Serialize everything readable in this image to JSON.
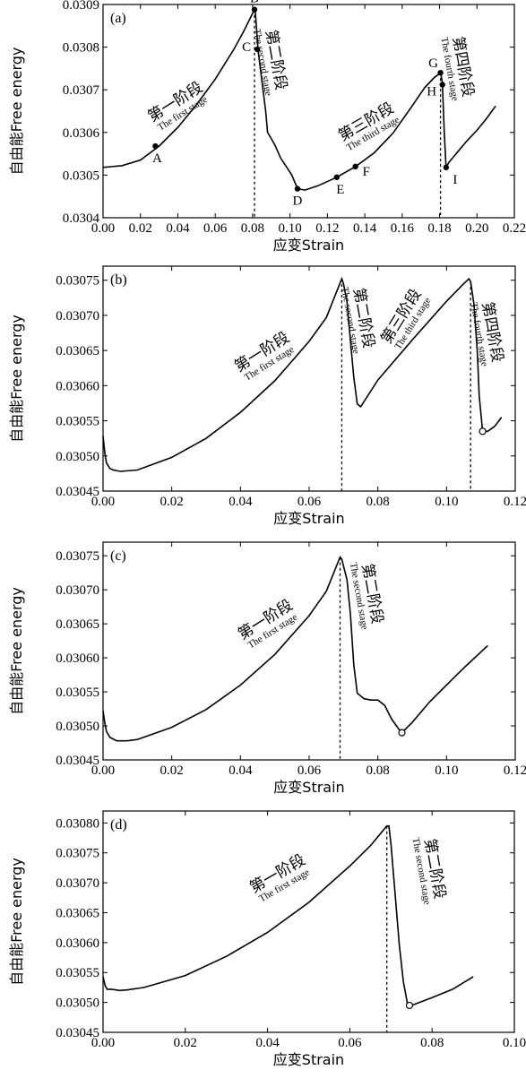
{
  "chart_data": [
    {
      "type": "line",
      "panel_label": "(a)",
      "xlabel": "应变Strain",
      "ylabel": "自由能Free energy",
      "xlim": [
        0,
        0.22
      ],
      "ylim": [
        0.0304,
        0.0309
      ],
      "xticks": [
        "0.00",
        "0.02",
        "0.04",
        "0.06",
        "0.08",
        "0.10",
        "0.12",
        "0.14",
        "0.16",
        "0.18",
        "0.20",
        "0.22"
      ],
      "yticks": [
        "0.0304",
        "0.0305",
        "0.0306",
        "0.0307",
        "0.0308",
        "0.0309"
      ],
      "series": [
        {
          "x": [
            0.0,
            0.01,
            0.02,
            0.03,
            0.04,
            0.05,
            0.06,
            0.07,
            0.075,
            0.081,
            0.0815,
            0.083,
            0.085,
            0.087,
            0.088,
            0.09,
            0.092,
            0.095,
            0.098,
            0.101,
            0.104,
            0.108,
            0.115,
            0.125,
            0.135,
            0.145,
            0.155,
            0.165,
            0.172,
            0.177,
            0.1805,
            0.181,
            0.1815,
            0.1825,
            0.1835,
            0.185,
            0.19,
            0.195,
            0.2,
            0.205,
            0.21
          ],
          "y": [
            0.030518,
            0.030522,
            0.030535,
            0.030568,
            0.030612,
            0.030665,
            0.030725,
            0.030795,
            0.030835,
            0.030888,
            0.03088,
            0.03079,
            0.03072,
            0.03065,
            0.0306,
            0.030585,
            0.03057,
            0.03054,
            0.03052,
            0.0305,
            0.030468,
            0.030465,
            0.030475,
            0.030495,
            0.03052,
            0.030552,
            0.030598,
            0.03066,
            0.030705,
            0.030728,
            0.03074,
            0.03073,
            0.030715,
            0.0306,
            0.030518,
            0.03053,
            0.030556,
            0.030582,
            0.030605,
            0.030632,
            0.030662
          ]
        }
      ],
      "points": [
        {
          "label": "A",
          "x": 0.028,
          "y": 0.030568
        },
        {
          "label": "B",
          "x": 0.081,
          "y": 0.030888
        },
        {
          "label": "C",
          "x": 0.0825,
          "y": 0.030795
        },
        {
          "label": "D",
          "x": 0.104,
          "y": 0.030468
        },
        {
          "label": "E",
          "x": 0.125,
          "y": 0.030495
        },
        {
          "label": "F",
          "x": 0.135,
          "y": 0.03052
        },
        {
          "label": "G",
          "x": 0.1805,
          "y": 0.03074
        },
        {
          "label": "H",
          "x": 0.1815,
          "y": 0.030712
        },
        {
          "label": "I",
          "x": 0.1835,
          "y": 0.030518
        }
      ],
      "dashed_x": [
        0.081,
        0.1805
      ],
      "stage_labels": [
        {
          "cn": "第一阶段",
          "en": "The first stage",
          "x": 0.04,
          "y": 0.030662,
          "angle": -32
        },
        {
          "cn": "第二阶段",
          "en": "The second stage",
          "x": 0.09,
          "y": 0.030768,
          "angle": 80
        },
        {
          "cn": "第三阶段",
          "en": "The third stage",
          "x": 0.142,
          "y": 0.030615,
          "angle": -30
        },
        {
          "cn": "第四阶段",
          "en": "The fourth stage",
          "x": 0.19,
          "y": 0.030752,
          "angle": 80
        }
      ]
    },
    {
      "type": "line",
      "panel_label": "(b)",
      "xlabel": "应变Strain",
      "ylabel": "自由能Free energy",
      "xlim": [
        0,
        0.12
      ],
      "ylim": [
        0.03045,
        0.03077
      ],
      "xticks": [
        "0.00",
        "0.02",
        "0.04",
        "0.06",
        "0.08",
        "0.10",
        "0.12"
      ],
      "yticks": [
        "0.03045",
        "0.03050",
        "0.03055",
        "0.03060",
        "0.03065",
        "0.03070",
        "0.03075"
      ],
      "series": [
        {
          "x": [
            0.0,
            0.0005,
            0.001,
            0.002,
            0.003,
            0.005,
            0.01,
            0.02,
            0.03,
            0.04,
            0.05,
            0.06,
            0.065,
            0.0695,
            0.07,
            0.071,
            0.072,
            0.073,
            0.074,
            0.075,
            0.08,
            0.09,
            0.1,
            0.105,
            0.1065,
            0.107,
            0.108,
            0.109,
            0.1095,
            0.1105,
            0.112,
            0.114,
            0.116
          ],
          "y": [
            0.030528,
            0.030505,
            0.03049,
            0.030482,
            0.03048,
            0.030478,
            0.03048,
            0.030498,
            0.030525,
            0.030562,
            0.030607,
            0.030663,
            0.030697,
            0.030752,
            0.030745,
            0.03072,
            0.030665,
            0.030612,
            0.030574,
            0.03057,
            0.030608,
            0.030665,
            0.03072,
            0.030745,
            0.030752,
            0.030748,
            0.030715,
            0.030645,
            0.030585,
            0.030535,
            0.030535,
            0.030542,
            0.030555
          ]
        }
      ],
      "points": [
        {
          "label": "",
          "x": 0.1105,
          "y": 0.030535
        }
      ],
      "dashed_x": [
        0.0695,
        0.107
      ],
      "stage_labels": [
        {
          "cn": "第一阶段",
          "en": "The first stage",
          "x": 0.047,
          "y": 0.030642,
          "angle": -32
        },
        {
          "cn": "第二阶段",
          "en": "The second stage",
          "x": 0.0745,
          "y": 0.030695,
          "angle": 80
        },
        {
          "cn": "第三阶段",
          "en": "The third stage",
          "x": 0.088,
          "y": 0.030695,
          "angle": -58
        },
        {
          "cn": "第四阶段",
          "en": "The fourth stage",
          "x": 0.112,
          "y": 0.030675,
          "angle": 80
        }
      ]
    },
    {
      "type": "line",
      "panel_label": "(c)",
      "xlabel": "应变Strain",
      "ylabel": "自由能Free energy",
      "xlim": [
        0,
        0.12
      ],
      "ylim": [
        0.03045,
        0.03077
      ],
      "xticks": [
        "0.00",
        "0.02",
        "0.04",
        "0.06",
        "0.08",
        "0.10",
        "0.12"
      ],
      "yticks": [
        "0.03045",
        "0.03050",
        "0.03055",
        "0.03060",
        "0.03065",
        "0.03070",
        "0.03075"
      ],
      "series": [
        {
          "x": [
            0.0,
            0.0005,
            0.001,
            0.002,
            0.004,
            0.007,
            0.01,
            0.02,
            0.03,
            0.04,
            0.05,
            0.06,
            0.065,
            0.069,
            0.0695,
            0.071,
            0.072,
            0.073,
            0.074,
            0.076,
            0.078,
            0.08,
            0.082,
            0.084,
            0.086,
            0.087,
            0.09,
            0.095,
            0.1,
            0.105,
            0.112
          ],
          "y": [
            0.030522,
            0.030505,
            0.030492,
            0.030483,
            0.030478,
            0.030478,
            0.03048,
            0.030498,
            0.030524,
            0.03056,
            0.030605,
            0.030662,
            0.030698,
            0.030748,
            0.030745,
            0.030715,
            0.030665,
            0.03059,
            0.030548,
            0.03054,
            0.030538,
            0.030538,
            0.03053,
            0.03051,
            0.030496,
            0.03049,
            0.030505,
            0.030535,
            0.03056,
            0.030585,
            0.030618
          ]
        }
      ],
      "points": [
        {
          "label": "",
          "x": 0.087,
          "y": 0.03049
        }
      ],
      "dashed_x": [
        0.069
      ],
      "stage_labels": [
        {
          "cn": "第一阶段",
          "en": "The first stage",
          "x": 0.048,
          "y": 0.03065,
          "angle": -32
        },
        {
          "cn": "第二阶段",
          "en": "The second stage",
          "x": 0.077,
          "y": 0.030693,
          "angle": 80
        }
      ]
    },
    {
      "type": "line",
      "panel_label": "(d)",
      "xlabel": "应变Strain",
      "ylabel": "自由能Free energy",
      "xlim": [
        0,
        0.1
      ],
      "ylim": [
        0.03045,
        0.03082
      ],
      "xticks": [
        "0.00",
        "0.02",
        "0.04",
        "0.06",
        "0.08",
        "0.10"
      ],
      "yticks": [
        "0.03045",
        "0.03050",
        "0.03055",
        "0.03060",
        "0.03065",
        "0.03070",
        "0.03075",
        "0.03080"
      ],
      "series": [
        {
          "x": [
            0.0,
            0.0005,
            0.001,
            0.002,
            0.004,
            0.006,
            0.01,
            0.02,
            0.03,
            0.04,
            0.05,
            0.06,
            0.065,
            0.069,
            0.0695,
            0.07,
            0.071,
            0.072,
            0.073,
            0.074,
            0.075,
            0.08,
            0.085,
            0.09
          ],
          "y": [
            0.030543,
            0.030528,
            0.030522,
            0.030522,
            0.03052,
            0.030521,
            0.030525,
            0.030545,
            0.030577,
            0.030617,
            0.030667,
            0.030728,
            0.030762,
            0.030795,
            0.030795,
            0.030765,
            0.030682,
            0.030598,
            0.030535,
            0.030498,
            0.030495,
            0.030508,
            0.030522,
            0.030543
          ]
        }
      ],
      "points": [
        {
          "label": "",
          "x": 0.0745,
          "y": 0.030495
        }
      ],
      "dashed_x": [
        0.069
      ],
      "stage_labels": [
        {
          "cn": "第一阶段",
          "en": "The first stage",
          "x": 0.043,
          "y": 0.030708,
          "angle": -30
        },
        {
          "cn": "第二阶段",
          "en": "The second stage",
          "x": 0.0795,
          "y": 0.030722,
          "angle": 80
        }
      ]
    }
  ]
}
